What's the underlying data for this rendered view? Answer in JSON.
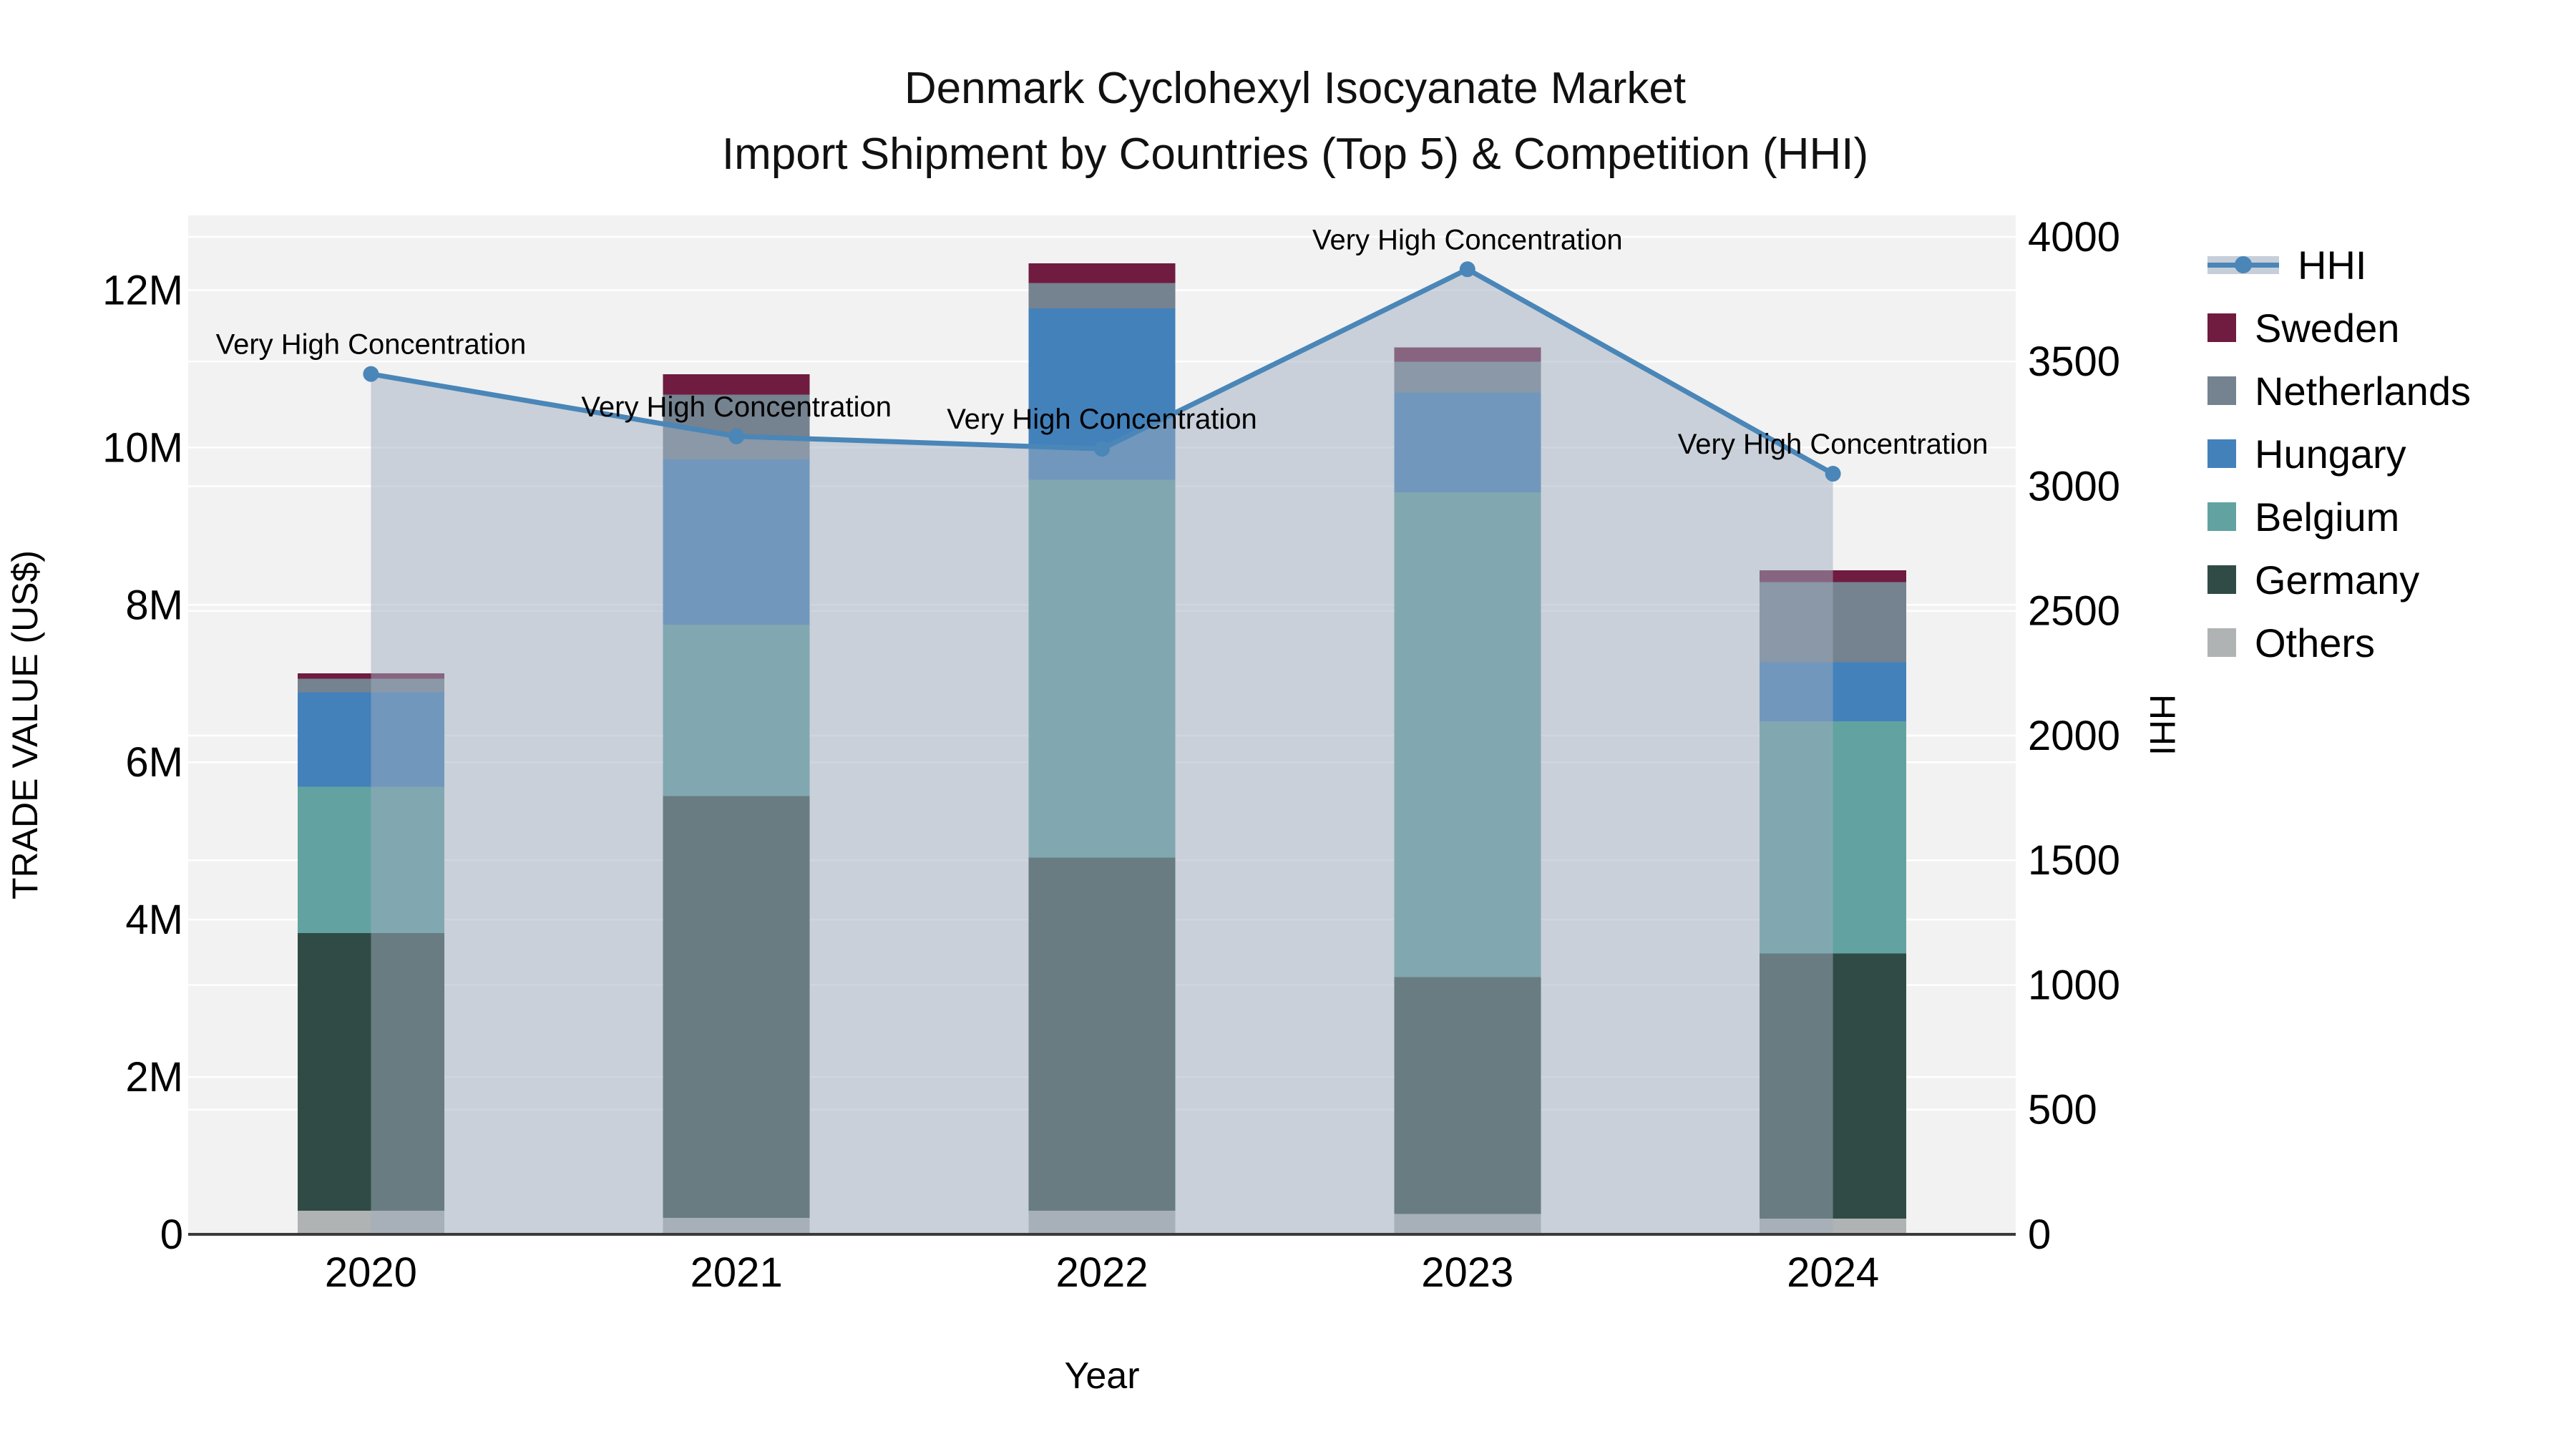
{
  "title": {
    "line1": "Denmark Cyclohexyl Isocyanate Market",
    "line2": "Import Shipment by Countries (Top 5) & Competition (HHI)"
  },
  "legend": {
    "items": [
      {
        "label": "HHI",
        "type": "line",
        "color": "#4A86B8",
        "band": "#C6CEDA"
      },
      {
        "label": "Sweden",
        "type": "square",
        "color": "#6F1C40"
      },
      {
        "label": "Netherlands",
        "type": "square",
        "color": "#75828F"
      },
      {
        "label": "Hungary",
        "type": "square",
        "color": "#4381BB"
      },
      {
        "label": "Belgium",
        "type": "square",
        "color": "#62A3A1"
      },
      {
        "label": "Germany",
        "type": "square",
        "color": "#304B45"
      },
      {
        "label": "Others",
        "type": "square",
        "color": "#AFB3B3"
      }
    ]
  },
  "chart_data": {
    "type": "bar",
    "subtype": "stacked-bar with line overlay, dual y-axis",
    "categories": [
      "2020",
      "2021",
      "2022",
      "2023",
      "2024"
    ],
    "bar_unit": "USD millions",
    "bar_series": [
      {
        "name": "Others",
        "color": "#AFB3B3",
        "values": [
          0.3,
          0.21,
          0.3,
          0.26,
          0.2
        ]
      },
      {
        "name": "Germany",
        "color": "#304B45",
        "values": [
          3.53,
          5.36,
          4.49,
          3.01,
          3.37
        ]
      },
      {
        "name": "Belgium",
        "color": "#62A3A1",
        "values": [
          1.86,
          2.18,
          4.8,
          6.16,
          2.95
        ]
      },
      {
        "name": "Hungary",
        "color": "#4381BB",
        "values": [
          1.2,
          2.1,
          2.18,
          1.27,
          0.75
        ]
      },
      {
        "name": "Netherlands",
        "color": "#75828F",
        "values": [
          0.17,
          0.82,
          0.32,
          0.39,
          1.02
        ]
      },
      {
        "name": "Sweden",
        "color": "#6F1C40",
        "values": [
          0.07,
          0.26,
          0.25,
          0.18,
          0.15
        ]
      }
    ],
    "bar_totals": [
      7.13,
      10.93,
      12.34,
      11.27,
      8.44
    ],
    "line_series": {
      "name": "HHI",
      "color": "#4A86B8",
      "area_fill": "rgba(160,174,192,0.5)",
      "values": [
        3450,
        3200,
        3150,
        3870,
        3050
      ]
    },
    "annotations": [
      "Very High Concentration",
      "Very High Concentration",
      "Very High Concentration",
      "Very High Concentration",
      "Very High Concentration"
    ],
    "x_axis": {
      "title": "Year"
    },
    "y_left": {
      "title": "TRADE VALUE (US$)",
      "tick_values": [
        0,
        2,
        4,
        6,
        8,
        10,
        12
      ],
      "tick_labels": [
        "0",
        "2M",
        "4M",
        "6M",
        "8M",
        "10M",
        "12M"
      ],
      "max": 12.95
    },
    "y_right": {
      "title": "HHI",
      "tick_values": [
        0,
        500,
        1000,
        1500,
        2000,
        2500,
        3000,
        3500,
        4000
      ],
      "tick_labels": [
        "0",
        "500",
        "1000",
        "1500",
        "2000",
        "2500",
        "3000",
        "3500",
        "4000"
      ],
      "max": 4086
    },
    "plot_bg": "#F2F2F2",
    "grid_color": "#FFFFFF",
    "legend_position": "right"
  }
}
